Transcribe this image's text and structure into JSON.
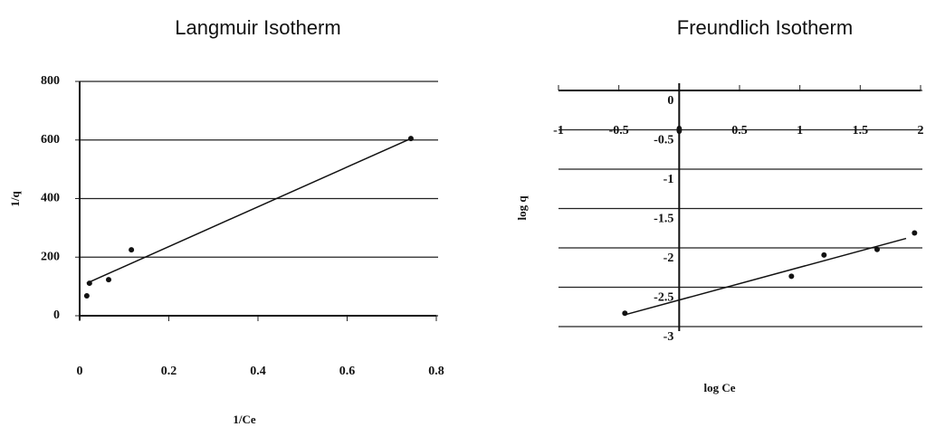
{
  "chart_data": [
    {
      "type": "scatter",
      "title": "Langmuir Isotherm",
      "x_label": "1/Ce",
      "y_label": "1/q",
      "x": [
        0.016,
        0.022,
        0.065,
        0.116,
        0.743
      ],
      "values": [
        68,
        111,
        123,
        225,
        605
      ],
      "trendline": {
        "x": [
          0.016,
          0.743
        ],
        "values": [
          111,
          605
        ]
      },
      "xlim": [
        0,
        0.8
      ],
      "ylim": [
        0,
        800
      ],
      "xticks": [
        0,
        0.2,
        0.4,
        0.6,
        0.8
      ],
      "yticks": [
        0,
        200,
        400,
        600,
        800
      ],
      "color": "#111111",
      "grid": true
    },
    {
      "type": "scatter",
      "title": "Freundlich Isotherm",
      "x_label": "log Ce",
      "y_label": "log q",
      "x": [
        -0.45,
        0.93,
        1.2,
        1.64,
        1.95
      ],
      "values": [
        -2.83,
        -2.36,
        -2.09,
        -2.02,
        -1.81
      ],
      "trendline": {
        "x": [
          -0.45,
          1.88
        ],
        "values": [
          -2.85,
          -1.88
        ]
      },
      "xlim": [
        -1,
        2
      ],
      "ylim": [
        -3,
        0
      ],
      "xticks": [
        -1,
        -0.5,
        0,
        0.5,
        1,
        1.5,
        2
      ],
      "yticks": [
        0,
        -0.5,
        -1,
        -1.5,
        -2,
        -2.5,
        -3
      ],
      "color": "#111111",
      "grid": true
    }
  ]
}
